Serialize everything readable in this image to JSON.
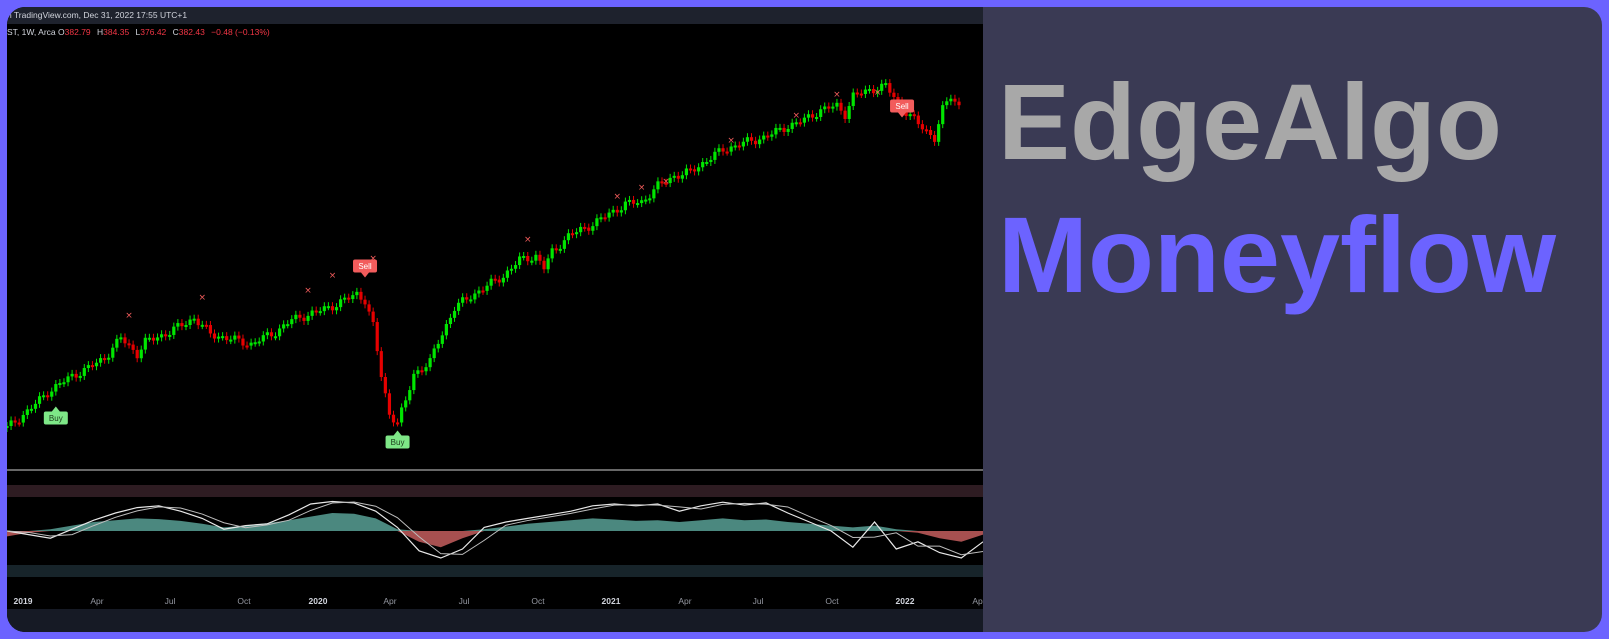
{
  "topbar": {
    "text": "n TradingView.com, Dec 31, 2022 17:55 UTC+1"
  },
  "legend": {
    "symbol": "ST, 1W, Arca",
    "open_label": "O",
    "open": "382.79",
    "high_label": "H",
    "high": "384.35",
    "low_label": "L",
    "low": "376.42",
    "close_label": "C",
    "close": "382.43",
    "change": "−0.48 (−0.13%)"
  },
  "brand": {
    "name": "EdgeAlgo",
    "product": "Moneyflow"
  },
  "colors": {
    "frame": "#6c63ff",
    "brand_bg": "#3a3a54",
    "brand_name": "#a8a8a8",
    "brand_product": "#6c63ff",
    "up_candle": "#00e600",
    "down_candle": "#e60000",
    "buy_label": "#7ee787",
    "sell_label": "#f25c5c",
    "flow_positive": "#4f8f86",
    "flow_negative": "#b05454"
  },
  "chart_data": {
    "type": "candlestick",
    "timeframe": "1W",
    "x_ticks": [
      "2019",
      "Apr",
      "Jul",
      "Oct",
      "2020",
      "Apr",
      "Jul",
      "Oct",
      "2021",
      "Apr",
      "Jul",
      "Oct",
      "2022",
      "Apr"
    ],
    "signals": [
      {
        "label": "Buy",
        "date": "2019-01-04"
      },
      {
        "label": "Sell",
        "date": "2020-02-14"
      },
      {
        "label": "Buy",
        "date": "2020-03-20"
      },
      {
        "label": "Sell",
        "date": "2022-01-07"
      }
    ],
    "price_path": [
      [
        0,
        8
      ],
      [
        6,
        28
      ],
      [
        10,
        44
      ],
      [
        16,
        60
      ],
      [
        20,
        68
      ],
      [
        24,
        78
      ],
      [
        28,
        98
      ],
      [
        32,
        82
      ],
      [
        34,
        94
      ],
      [
        40,
        104
      ],
      [
        46,
        118
      ],
      [
        50,
        102
      ],
      [
        54,
        98
      ],
      [
        60,
        92
      ],
      [
        66,
        104
      ],
      [
        70,
        116
      ],
      [
        76,
        124
      ],
      [
        80,
        130
      ],
      [
        86,
        142
      ],
      [
        88,
        136
      ],
      [
        90,
        110
      ],
      [
        92,
        60
      ],
      [
        94,
        22
      ],
      [
        96,
        14
      ],
      [
        98,
        34
      ],
      [
        100,
        62
      ],
      [
        104,
        74
      ],
      [
        106,
        94
      ],
      [
        110,
        128
      ],
      [
        114,
        140
      ],
      [
        118,
        150
      ],
      [
        122,
        160
      ],
      [
        126,
        176
      ],
      [
        130,
        180
      ],
      [
        132,
        168
      ],
      [
        134,
        184
      ],
      [
        138,
        200
      ],
      [
        144,
        212
      ],
      [
        148,
        222
      ],
      [
        152,
        232
      ],
      [
        156,
        234
      ],
      [
        160,
        250
      ],
      [
        164,
        260
      ],
      [
        168,
        264
      ],
      [
        172,
        276
      ],
      [
        176,
        286
      ],
      [
        180,
        292
      ],
      [
        184,
        296
      ],
      [
        188,
        302
      ],
      [
        192,
        310
      ],
      [
        196,
        316
      ],
      [
        200,
        326
      ],
      [
        204,
        330
      ],
      [
        206,
        322
      ],
      [
        208,
        340
      ],
      [
        212,
        346
      ],
      [
        216,
        350
      ],
      [
        220,
        328
      ],
      [
        224,
        312
      ],
      [
        228,
        298
      ],
      [
        230,
        326
      ],
      [
        232,
        340
      ],
      [
        234,
        330
      ]
    ],
    "oscillator": {
      "mf_line": [
        0.0,
        -0.1,
        -0.2,
        0.05,
        0.3,
        0.5,
        0.65,
        0.7,
        0.55,
        0.35,
        0.05,
        0.15,
        0.2,
        0.45,
        0.75,
        0.82,
        0.78,
        0.55,
        0.1,
        -0.55,
        -0.75,
        -0.5,
        0.1,
        0.25,
        0.35,
        0.45,
        0.55,
        0.7,
        0.75,
        0.7,
        0.75,
        0.55,
        0.7,
        0.8,
        0.72,
        0.78,
        0.5,
        0.25,
        0.0,
        -0.45,
        0.25,
        -0.5,
        -0.3,
        -0.6,
        -0.75,
        -0.3
      ],
      "flow_area": [
        -0.15,
        -0.05,
        0.05,
        0.15,
        0.25,
        0.3,
        0.35,
        0.33,
        0.28,
        0.2,
        0.1,
        0.15,
        0.22,
        0.3,
        0.4,
        0.5,
        0.48,
        0.35,
        0.05,
        -0.3,
        -0.45,
        -0.2,
        0.05,
        0.12,
        0.2,
        0.25,
        0.3,
        0.35,
        0.32,
        0.28,
        0.3,
        0.25,
        0.3,
        0.35,
        0.3,
        0.32,
        0.25,
        0.2,
        0.15,
        0.1,
        0.15,
        0.05,
        -0.05,
        -0.2,
        -0.3,
        -0.1
      ]
    }
  }
}
